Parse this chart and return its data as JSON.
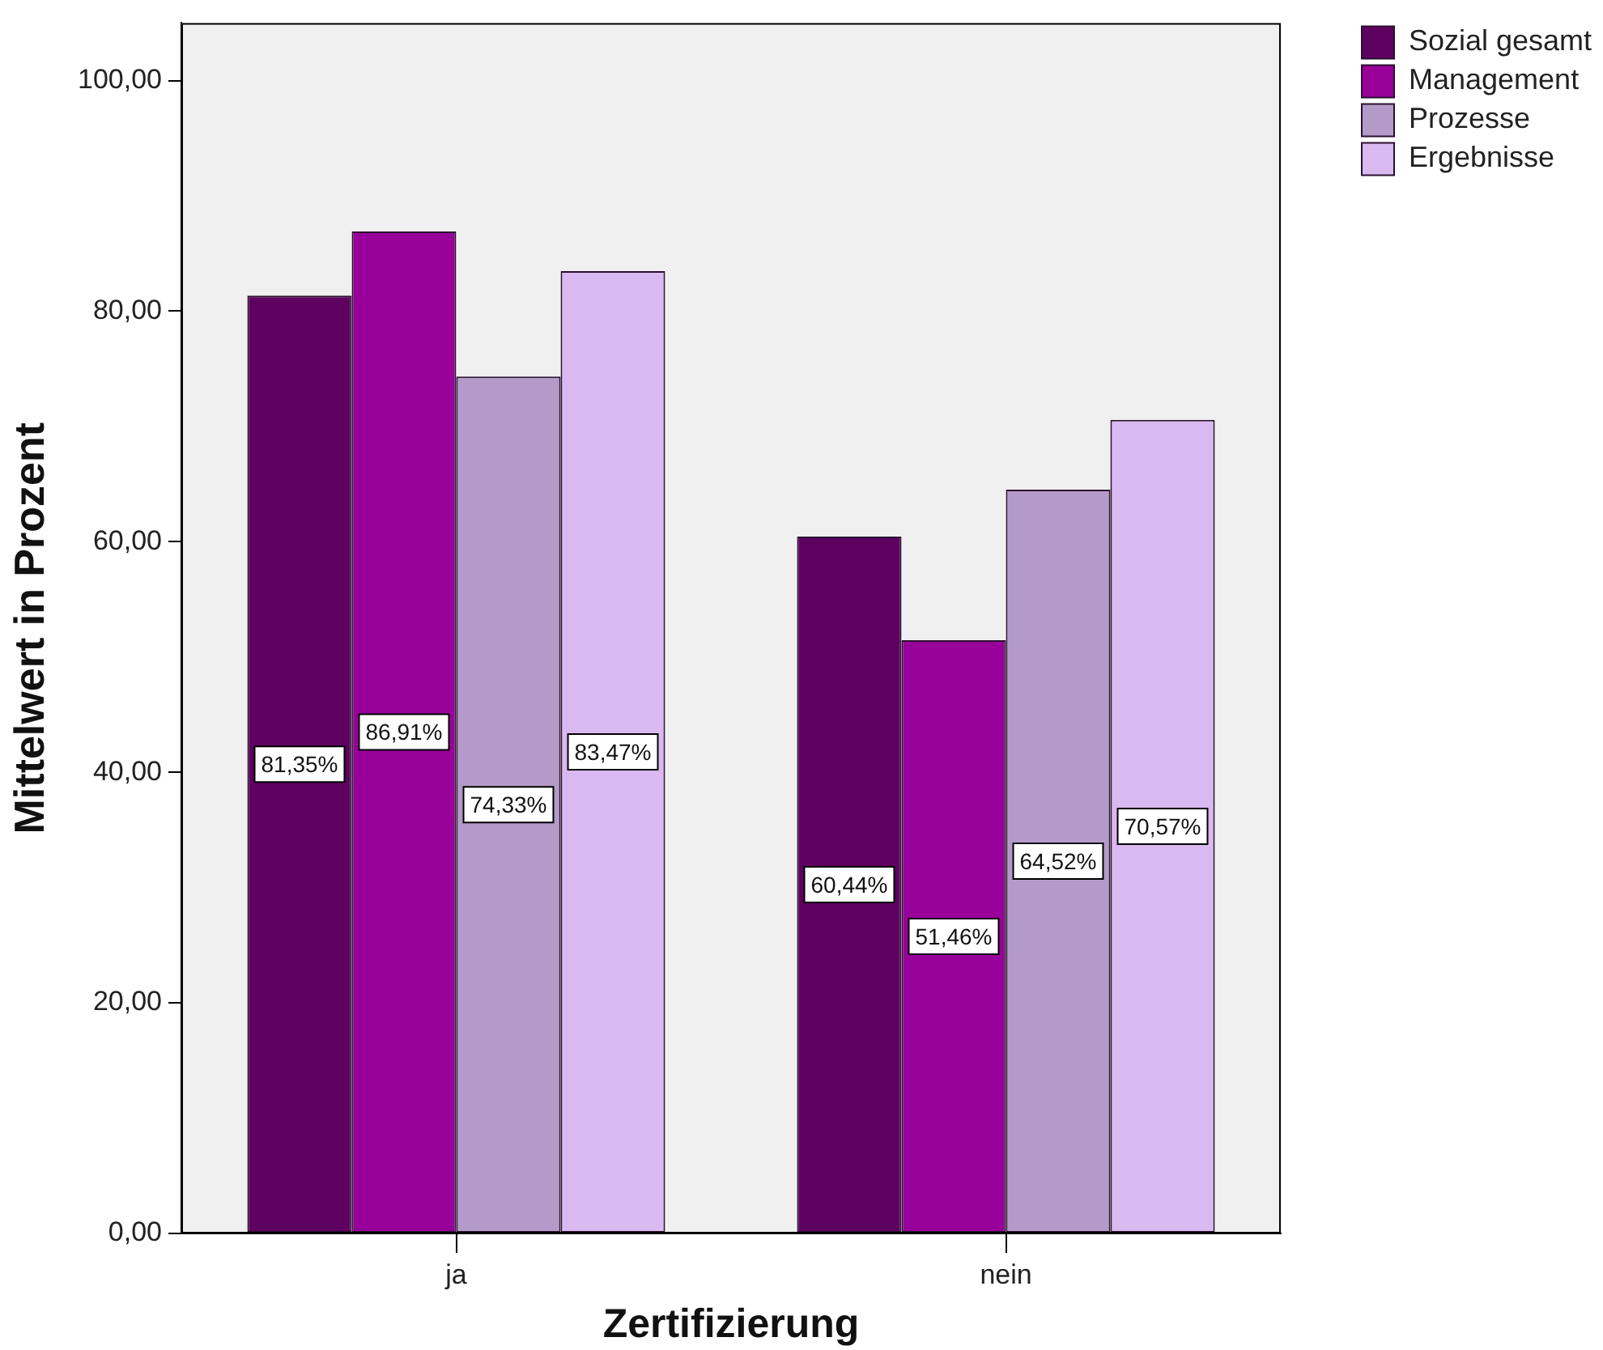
{
  "chart_data": {
    "type": "bar",
    "xlabel": "Zertifizierung",
    "ylabel": "Mittelwert in Prozent",
    "categories": [
      "ja",
      "nein"
    ],
    "series": [
      {
        "name": "Sozial gesamt",
        "color": "#5e0060",
        "values": [
          81.35,
          60.44
        ],
        "value_labels": [
          "81,35%",
          "60,44%"
        ]
      },
      {
        "name": "Management",
        "color": "#990099",
        "values": [
          86.91,
          51.46
        ],
        "value_labels": [
          "86,91%",
          "51,46%"
        ]
      },
      {
        "name": "Prozesse",
        "color": "#b49ac9",
        "values": [
          74.33,
          64.52
        ],
        "value_labels": [
          "74,33%",
          "64,52%"
        ]
      },
      {
        "name": "Ergebnisse",
        "color": "#d9b9f0",
        "values": [
          83.47,
          70.57
        ],
        "value_labels": [
          "83,47%",
          "70,57%"
        ]
      }
    ],
    "ylim": [
      0,
      105
    ],
    "yticks": [
      {
        "value": 0,
        "label": "0,00"
      },
      {
        "value": 20,
        "label": "20,00"
      },
      {
        "value": 40,
        "label": "40,00"
      },
      {
        "value": 60,
        "label": "60,00"
      },
      {
        "value": 80,
        "label": "80,00"
      },
      {
        "value": 100,
        "label": "100,00"
      }
    ],
    "grid": false,
    "legend": "top right"
  }
}
